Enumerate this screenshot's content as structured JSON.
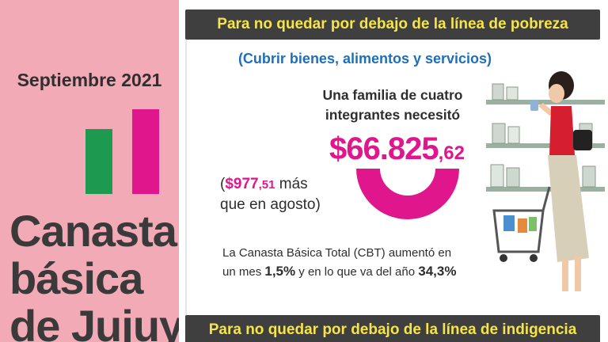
{
  "left_panel": {
    "date": "Septiembre 2021",
    "title_lines": [
      "Canasta",
      "básica",
      "de Jujuy"
    ],
    "bar_colors": {
      "green": "#1d9a4f",
      "pink": "#e0168c"
    }
  },
  "poverty": {
    "banner": "Para no quedar por debajo de la línea de pobreza",
    "subtitle": "(Cubrir bienes, alimentos y servicios)",
    "family_line1": "Una familia de cuatro",
    "family_line2": "integrantes necesitó",
    "amount_main": "$66.825",
    "amount_dec": ",62",
    "increase_open": "(",
    "increase_value": "$977",
    "increase_dec": ",51",
    "increase_tail": " más",
    "increase_line2": "que en agosto)",
    "cbt_text1": "La Canasta Básica Total (CBT) aumentó en",
    "cbt_text2": "un mes ",
    "cbt_monthly": "1,5%",
    "cbt_text3": " y en lo que va del año ",
    "cbt_yearly": "34,3%"
  },
  "indigence": {
    "banner": "Para no quedar por debajo de la línea de indigencia"
  },
  "colors": {
    "accent_pink": "#e0168c",
    "banner_bg": "#3f3f3f",
    "banner_text": "#f5e44a",
    "subtitle_blue": "#1f6fb6",
    "left_bg": "#f2aab7"
  },
  "illustration": "woman-shopping-cart-illustration"
}
